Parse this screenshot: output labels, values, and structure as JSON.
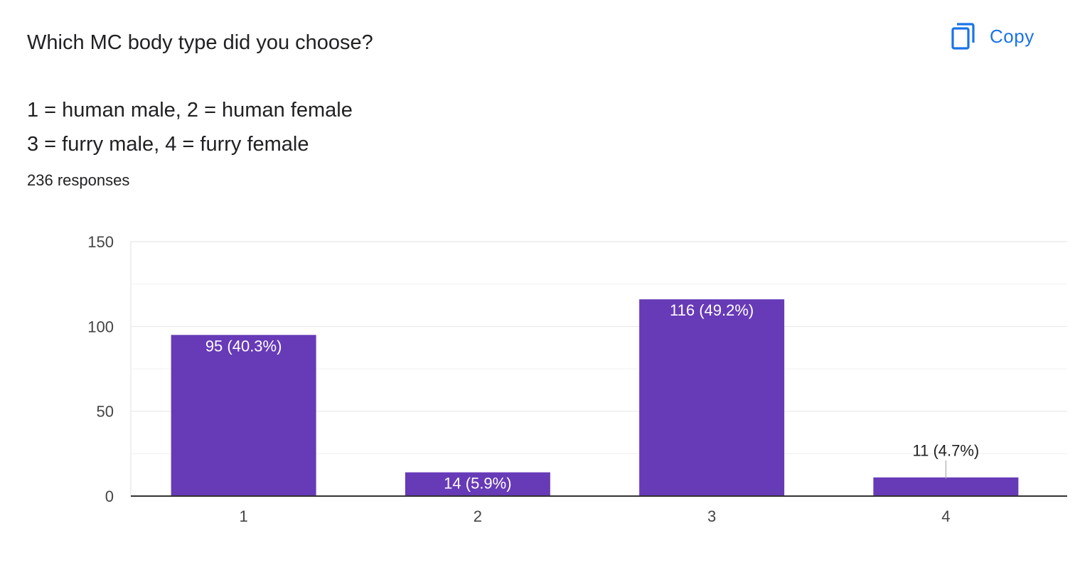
{
  "question": {
    "title": "Which MC body type did you choose?",
    "legend_line_1": "1 = human male, 2 = human female",
    "legend_line_2": "3 = furry male, 4 = furry female"
  },
  "responses_text": "236 responses",
  "copy_button": {
    "label": "Copy",
    "icon": "copy-icon",
    "color": "#1a73e8"
  },
  "chart_data": {
    "type": "bar",
    "categories": [
      "1",
      "2",
      "3",
      "4"
    ],
    "values": [
      95,
      14,
      116,
      11
    ],
    "data_labels": [
      "95 (40.3%)",
      "14 (5.9%)",
      "116 (49.2%)",
      "11 (4.7%)"
    ],
    "yticks": [
      0,
      50,
      100,
      150
    ],
    "ylim": [
      0,
      150
    ],
    "grid": true,
    "bar_color": "#673ab7",
    "title": "",
    "xlabel": "",
    "ylabel": ""
  }
}
